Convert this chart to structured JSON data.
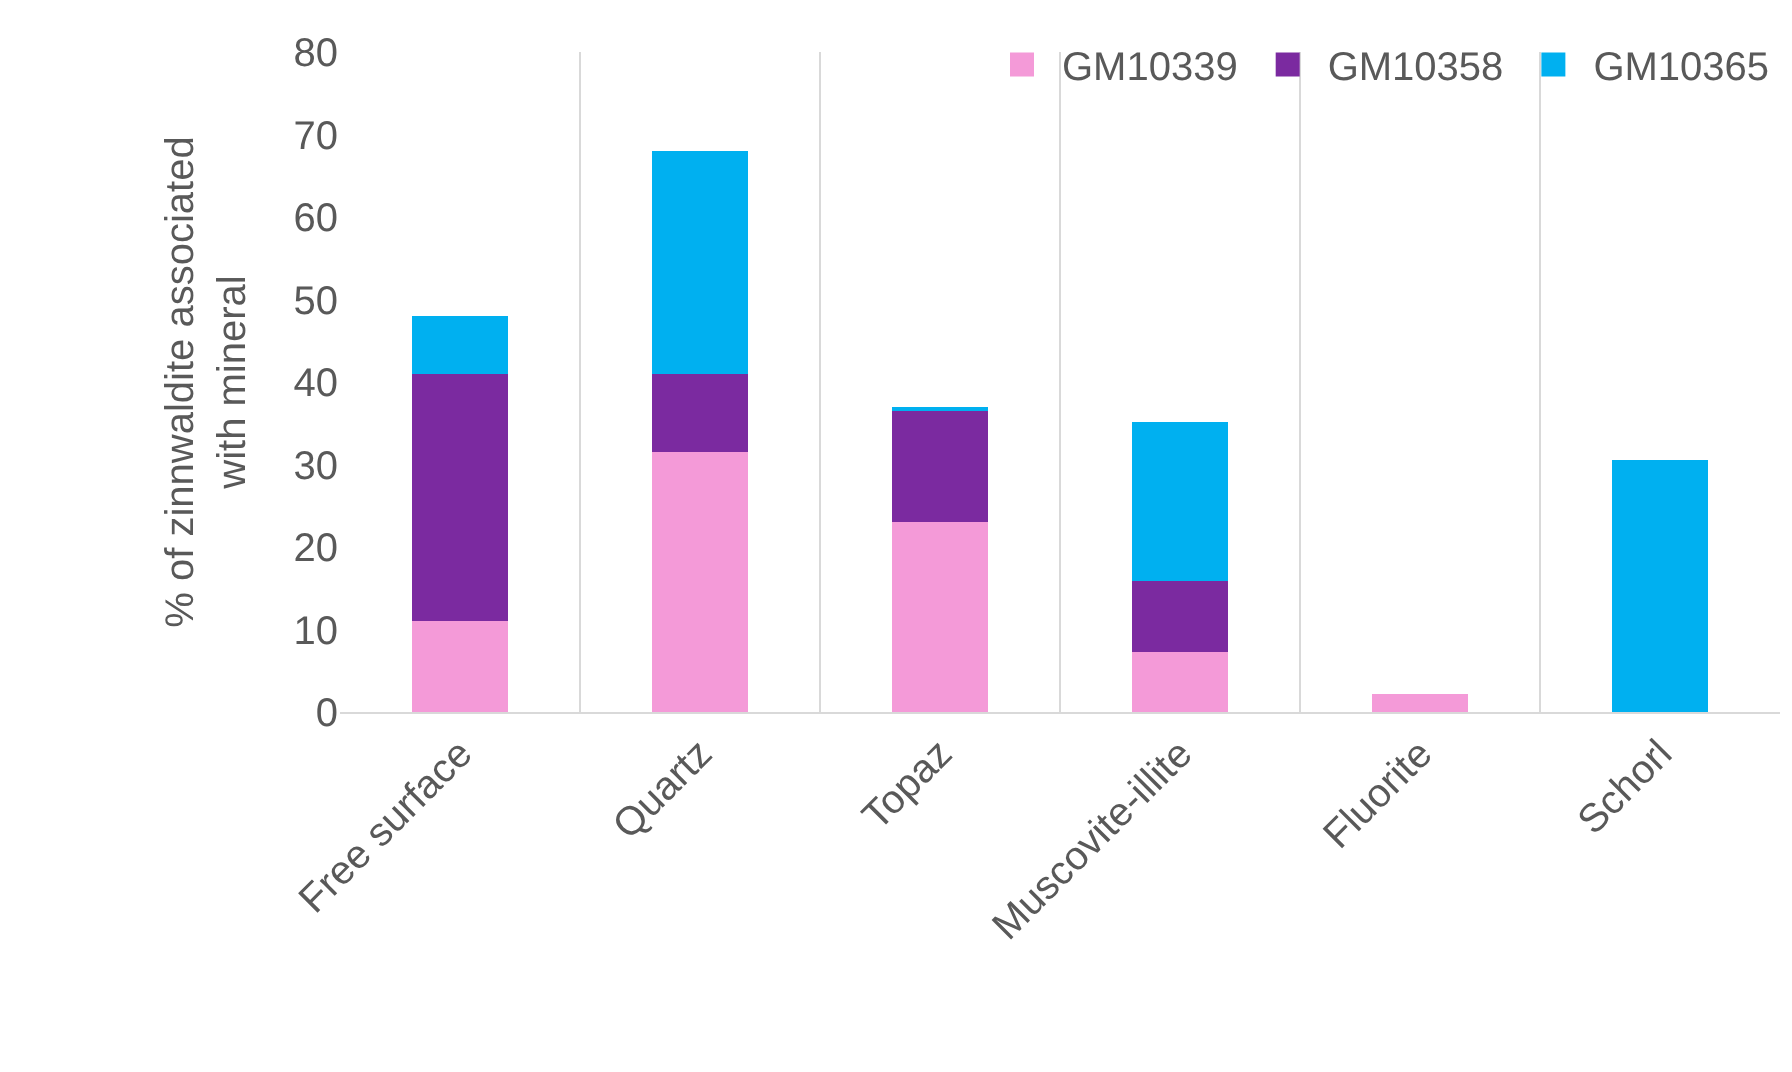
{
  "chart_data": {
    "type": "bar",
    "stacked": true,
    "ylabel": "% of zinnwaldite associated with mineral",
    "categories": [
      "Free surface",
      "Quartz",
      "Topaz",
      "Muscovite-illite",
      "Fluorite",
      "Schorl"
    ],
    "series": [
      {
        "name": "GM10339",
        "color": "#f49ad8",
        "values": [
          11,
          31.5,
          23,
          7.3,
          2.2,
          0
        ]
      },
      {
        "name": "GM10358",
        "color": "#7b2aa0",
        "values": [
          30,
          9.5,
          13.5,
          8.6,
          0,
          0
        ]
      },
      {
        "name": "GM10365",
        "color": "#00b0f0",
        "values": [
          7,
          27,
          0.5,
          19.2,
          0,
          30.5
        ]
      }
    ],
    "ylim": [
      0,
      80
    ],
    "yticks": [
      0,
      10,
      20,
      30,
      40,
      50,
      60,
      70,
      80
    ],
    "grid": "x",
    "legend": "top right"
  }
}
